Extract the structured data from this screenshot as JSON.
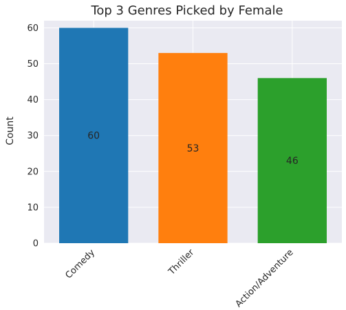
{
  "chart_data": {
    "type": "bar",
    "title": "Top 3 Genres Picked by Female",
    "xlabel": "",
    "ylabel": "Count",
    "categories": [
      "Comedy",
      "Thriller",
      "Action/Adventure"
    ],
    "values": [
      60,
      53,
      46
    ],
    "data_labels": [
      "60",
      "53",
      "46"
    ],
    "colors": [
      "#1f77b4",
      "#ff7f0e",
      "#2ca02c"
    ],
    "ylim": [
      0,
      62
    ],
    "yticks": [
      0,
      10,
      20,
      30,
      40,
      50,
      60
    ],
    "grid": true,
    "background": "#eaeaf2",
    "gridline_color": "#ffffff",
    "xtick_rotation_deg": 45
  }
}
